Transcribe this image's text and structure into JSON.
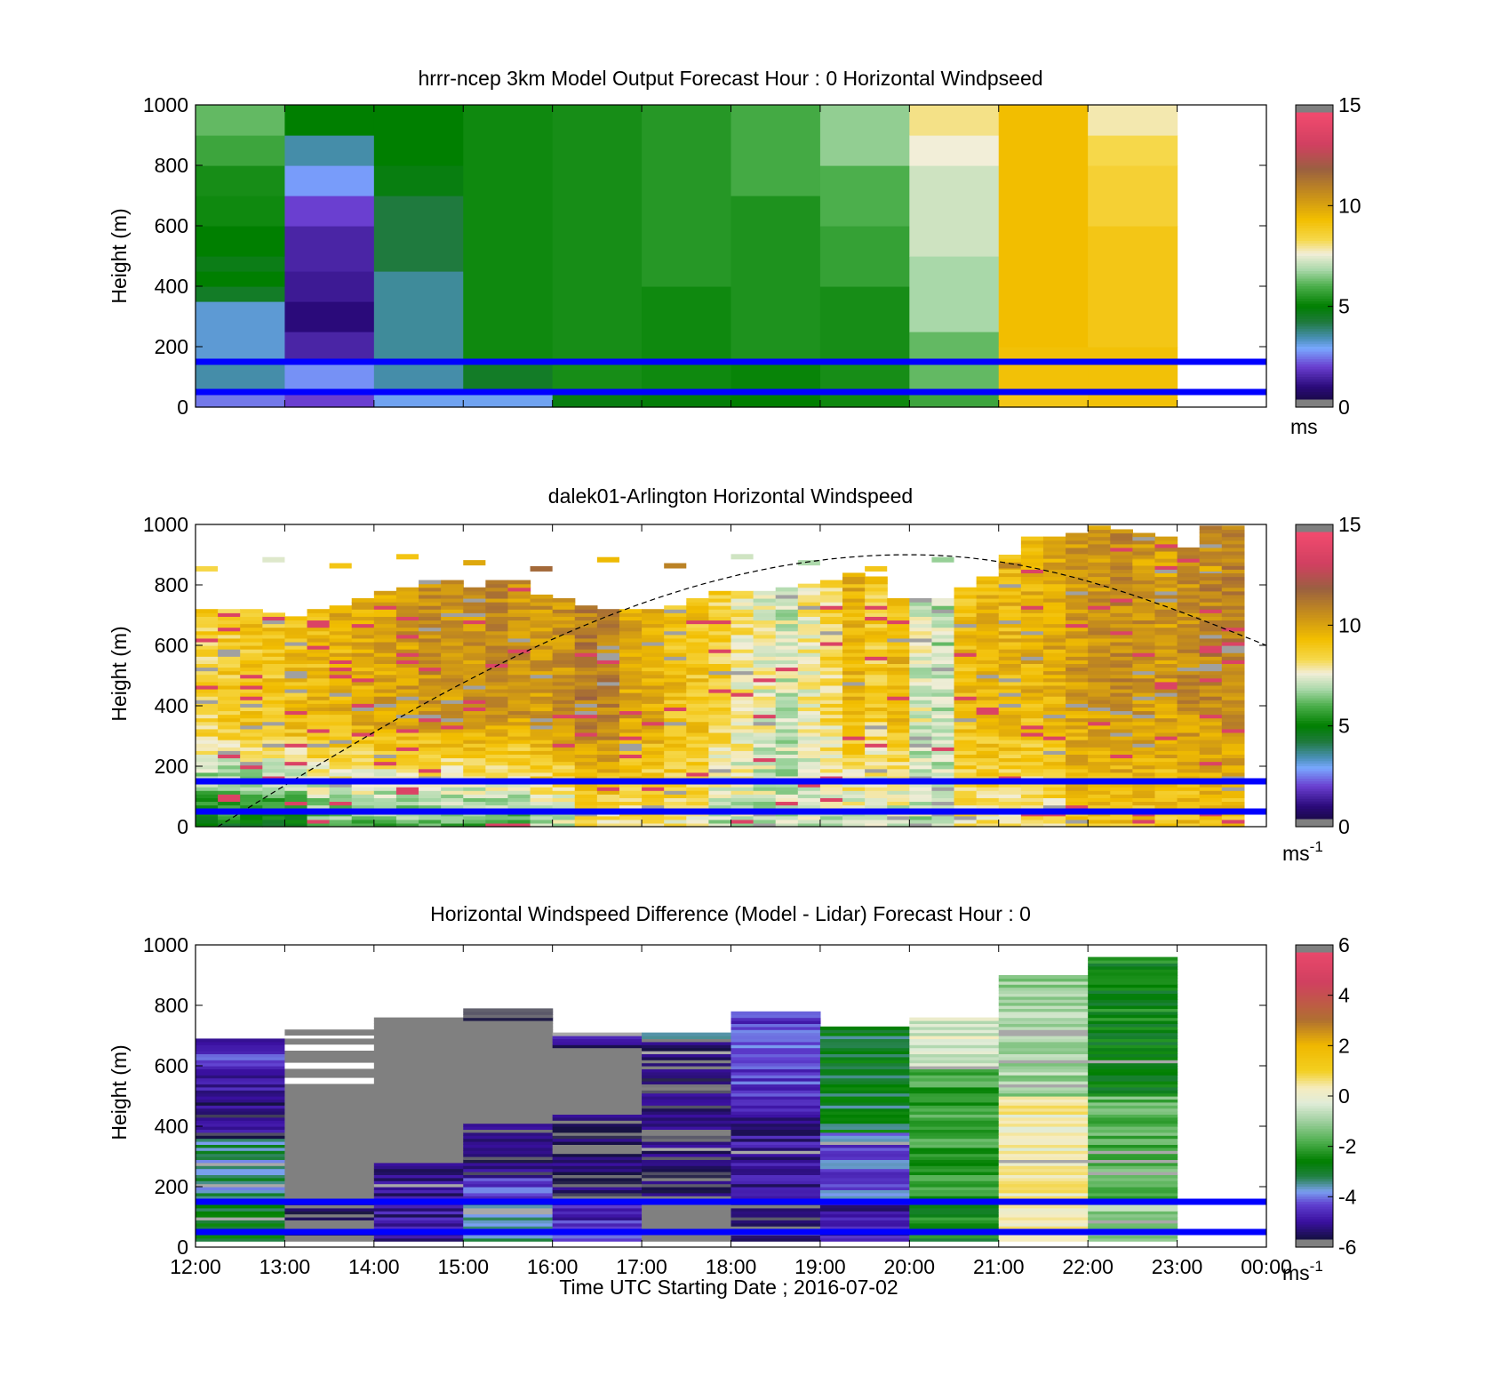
{
  "chart_data": [
    {
      "type": "heatmap",
      "title": "hrrr-ncep 3km Model Output   Forecast Hour : 0 Horizontal Windpseed",
      "ylabel": "Height (m)",
      "xlabel": "",
      "ylim": [
        0,
        1000
      ],
      "yticks": [
        "0",
        "200",
        "400",
        "600",
        "800",
        "1000"
      ],
      "x_categories": [
        "12:00",
        "13:00",
        "14:00",
        "15:00",
        "16:00",
        "17:00",
        "18:00",
        "19:00",
        "20:00",
        "21:00",
        "22:00",
        "23:00"
      ],
      "colorbar": {
        "min": 0,
        "max": 15,
        "ticks": [
          "0",
          "5",
          "10",
          "15"
        ],
        "unit": "ms"
      },
      "reference_lines_m": [
        150,
        50
      ],
      "columns": [
        {
          "time": "12:00",
          "layers": [
            [
              0,
              50,
              2.5
            ],
            [
              50,
              150,
              3.5
            ],
            [
              150,
              350,
              3.2
            ],
            [
              350,
              400,
              4.5
            ],
            [
              400,
              450,
              5.0
            ],
            [
              450,
              500,
              4.7
            ],
            [
              500,
              600,
              5.0
            ],
            [
              600,
              700,
              5.2
            ],
            [
              700,
              800,
              5.3
            ],
            [
              800,
              900,
              5.8
            ],
            [
              900,
              1000,
              6.2
            ]
          ]
        },
        {
          "time": "13:00",
          "layers": [
            [
              0,
              50,
              2.0
            ],
            [
              50,
              150,
              2.7
            ],
            [
              150,
              250,
              1.5
            ],
            [
              250,
              350,
              1.0
            ],
            [
              350,
              450,
              1.3
            ],
            [
              450,
              600,
              1.5
            ],
            [
              600,
              700,
              2.0
            ],
            [
              700,
              800,
              2.8
            ],
            [
              800,
              900,
              3.5
            ],
            [
              900,
              1000,
              5.0
            ]
          ]
        },
        {
          "time": "14:00",
          "layers": [
            [
              0,
              50,
              3.0
            ],
            [
              50,
              150,
              3.5
            ],
            [
              150,
              450,
              3.6
            ],
            [
              450,
              700,
              4.2
            ],
            [
              700,
              800,
              4.8
            ],
            [
              800,
              1000,
              5.0
            ]
          ]
        },
        {
          "time": "15:00",
          "layers": [
            [
              0,
              50,
              3.0
            ],
            [
              50,
              150,
              4.5
            ],
            [
              150,
              1000,
              5.2
            ]
          ]
        },
        {
          "time": "16:00",
          "layers": [
            [
              0,
              50,
              4.8
            ],
            [
              50,
              1000,
              5.3
            ]
          ]
        },
        {
          "time": "17:00",
          "layers": [
            [
              0,
              50,
              4.9
            ],
            [
              50,
              400,
              5.2
            ],
            [
              400,
              1000,
              5.5
            ]
          ]
        },
        {
          "time": "18:00",
          "layers": [
            [
              0,
              50,
              5.0
            ],
            [
              50,
              150,
              5.1
            ],
            [
              150,
              700,
              5.4
            ],
            [
              700,
              1000,
              5.9
            ]
          ]
        },
        {
          "time": "19:00",
          "layers": [
            [
              0,
              50,
              5.2
            ],
            [
              50,
              400,
              5.3
            ],
            [
              400,
              600,
              5.7
            ],
            [
              600,
              800,
              6.0
            ],
            [
              800,
              1000,
              6.6
            ]
          ]
        },
        {
          "time": "20:00",
          "layers": [
            [
              0,
              50,
              5.8
            ],
            [
              50,
              250,
              6.2
            ],
            [
              250,
              500,
              6.8
            ],
            [
              500,
              800,
              7.2
            ],
            [
              800,
              900,
              7.6
            ],
            [
              900,
              1000,
              8.0
            ]
          ]
        },
        {
          "time": "21:00",
          "layers": [
            [
              0,
              50,
              9.0
            ],
            [
              50,
              200,
              9.2
            ],
            [
              200,
              1000,
              9.3
            ]
          ]
        },
        {
          "time": "22:00",
          "layers": [
            [
              0,
              50,
              9.2
            ],
            [
              50,
              200,
              9.2
            ],
            [
              200,
              600,
              9.0
            ],
            [
              600,
              800,
              8.6
            ],
            [
              800,
              900,
              8.3
            ],
            [
              900,
              1000,
              7.8
            ]
          ]
        }
      ]
    },
    {
      "type": "heatmap",
      "title": "dalek01-Arlington  Horizontal Windspeed",
      "ylabel": "Height (m)",
      "xlabel": "",
      "ylim": [
        0,
        1000
      ],
      "yticks": [
        "0",
        "200",
        "400",
        "600",
        "800",
        "1000"
      ],
      "colorbar": {
        "min": 0,
        "max": 15,
        "ticks": [
          "0",
          "5",
          "10",
          "15"
        ],
        "unit": "ms",
        "unit_exp": "-1"
      },
      "reference_lines_m": [
        150,
        50
      ],
      "boundary_layer_curve": {
        "start": [
          "12:15",
          0
        ],
        "peak": [
          "20:00",
          900
        ],
        "end": [
          "00:00",
          600
        ]
      },
      "profiles": [
        {
          "time": "12:15",
          "top": 730,
          "surface": 5,
          "upper": 8.6
        },
        {
          "time": "12:30",
          "top": 730,
          "surface": 5,
          "upper": 8.8
        },
        {
          "time": "12:45",
          "top": 720,
          "surface": 5,
          "upper": 9.0
        },
        {
          "time": "13:00",
          "top": 710,
          "surface": 5,
          "upper": 9.0
        },
        {
          "time": "13:15",
          "top": 700,
          "surface": 5,
          "upper": 9.2
        },
        {
          "time": "13:30",
          "top": 720,
          "surface": 6,
          "upper": 9.4
        },
        {
          "time": "13:45",
          "top": 740,
          "surface": 6,
          "upper": 9.6
        },
        {
          "time": "14:00",
          "top": 760,
          "surface": 6,
          "upper": 9.8
        },
        {
          "time": "14:15",
          "top": 780,
          "surface": 6,
          "upper": 10.0
        },
        {
          "time": "14:30",
          "top": 800,
          "surface": 6,
          "upper": 10.2
        },
        {
          "time": "14:45",
          "top": 820,
          "surface": 6,
          "upper": 10.4
        },
        {
          "time": "15:00",
          "top": 820,
          "surface": 6,
          "upper": 10.2
        },
        {
          "time": "15:15",
          "top": 800,
          "surface": 6,
          "upper": 10.4
        },
        {
          "time": "15:30",
          "top": 820,
          "surface": 6,
          "upper": 10.6
        },
        {
          "time": "15:45",
          "top": 820,
          "surface": 6,
          "upper": 10.4
        },
        {
          "time": "16:00",
          "top": 770,
          "surface": 7,
          "upper": 10.2
        },
        {
          "time": "16:15",
          "top": 760,
          "surface": 7,
          "upper": 10.4
        },
        {
          "time": "16:30",
          "top": 740,
          "surface": 8,
          "upper": 11.0
        },
        {
          "time": "16:45",
          "top": 720,
          "surface": 8,
          "upper": 10.8
        },
        {
          "time": "17:00",
          "top": 720,
          "surface": 8,
          "upper": 10.0
        },
        {
          "time": "17:15",
          "top": 720,
          "surface": 8,
          "upper": 9.6
        },
        {
          "time": "17:30",
          "top": 740,
          "surface": 8,
          "upper": 9.2
        },
        {
          "time": "17:45",
          "top": 760,
          "surface": 8,
          "upper": 9.0
        },
        {
          "time": "18:00",
          "top": 780,
          "surface": 7,
          "upper": 8.6
        },
        {
          "time": "18:15",
          "top": 780,
          "surface": 7,
          "upper": 8.0
        },
        {
          "time": "18:30",
          "top": 790,
          "surface": 7,
          "upper": 7.6
        },
        {
          "time": "18:45",
          "top": 800,
          "surface": 7,
          "upper": 7.2
        },
        {
          "time": "19:00",
          "top": 810,
          "surface": 7,
          "upper": 7.8
        },
        {
          "time": "19:15",
          "top": 820,
          "surface": 7,
          "upper": 8.4
        },
        {
          "time": "19:30",
          "top": 840,
          "surface": 7,
          "upper": 9.6
        },
        {
          "time": "19:45",
          "top": 830,
          "surface": 7,
          "upper": 8.8
        },
        {
          "time": "20:00",
          "top": 760,
          "surface": 7,
          "upper": 9.4
        },
        {
          "time": "20:15",
          "top": 760,
          "surface": 7,
          "upper": 7.4
        },
        {
          "time": "20:30",
          "top": 760,
          "surface": 7,
          "upper": 7.0
        },
        {
          "time": "20:45",
          "top": 800,
          "surface": 8,
          "upper": 9.2
        },
        {
          "time": "21:00",
          "top": 830,
          "surface": 8,
          "upper": 9.4
        },
        {
          "time": "21:15",
          "top": 900,
          "surface": 8,
          "upper": 9.4
        },
        {
          "time": "21:30",
          "top": 960,
          "surface": 8,
          "upper": 9.6
        },
        {
          "time": "21:45",
          "top": 970,
          "surface": 8,
          "upper": 9.8
        },
        {
          "time": "22:00",
          "top": 980,
          "surface": 9,
          "upper": 10.2
        },
        {
          "time": "22:15",
          "top": 1000,
          "surface": 9,
          "upper": 10.4
        },
        {
          "time": "22:30",
          "top": 990,
          "surface": 9,
          "upper": 10.6
        },
        {
          "time": "22:45",
          "top": 980,
          "surface": 9,
          "upper": 10.4
        },
        {
          "time": "23:00",
          "top": 960,
          "surface": 9,
          "upper": 10.2
        },
        {
          "time": "23:15",
          "top": 930,
          "surface": 9,
          "upper": 10.6
        },
        {
          "time": "23:30",
          "top": 1000,
          "surface": 9,
          "upper": 10.8
        },
        {
          "time": "23:45",
          "top": 1000,
          "surface": 9,
          "upper": 10.8
        }
      ]
    },
    {
      "type": "heatmap",
      "title": "Horizontal Windspeed Difference (Model - Lidar) Forecast Hour : 0",
      "ylabel": "Height (m)",
      "xlabel": "Time UTC  Starting Date ; 2016-07-02",
      "ylim": [
        0,
        1000
      ],
      "yticks": [
        "0",
        "200",
        "400",
        "600",
        "800",
        "1000"
      ],
      "xticks": [
        "12:00",
        "13:00",
        "14:00",
        "15:00",
        "16:00",
        "17:00",
        "18:00",
        "19:00",
        "20:00",
        "21:00",
        "22:00",
        "23:00",
        "00:00"
      ],
      "colorbar": {
        "min": -6,
        "max": 6,
        "ticks": [
          "-6",
          "-4",
          "-2",
          "0",
          "2",
          "4",
          "6"
        ],
        "unit": "ms",
        "unit_exp": "-1"
      },
      "reference_lines_m": [
        150,
        50
      ],
      "columns": [
        {
          "time": "12:00",
          "layers": [
            [
              20,
              180,
              -3.0
            ],
            [
              180,
              360,
              -3.4
            ],
            [
              360,
              500,
              -5.3
            ],
            [
              500,
              600,
              -5.0
            ],
            [
              600,
              690,
              -4.6
            ]
          ]
        },
        {
          "time": "13:00",
          "layers": [
            [
              20,
              160,
              -5.8
            ],
            [
              160,
              720,
              -6.5
            ]
          ]
        },
        {
          "time": "14:00",
          "layers": [
            [
              20,
              280,
              -5.0
            ],
            [
              280,
              760,
              -6.5
            ]
          ]
        },
        {
          "time": "15:00",
          "layers": [
            [
              20,
              150,
              -3.4
            ],
            [
              150,
              230,
              -4.2
            ],
            [
              230,
              410,
              -5.4
            ],
            [
              410,
              750,
              -6.5
            ],
            [
              750,
              790,
              -5.8
            ]
          ]
        },
        {
          "time": "16:00",
          "layers": [
            [
              20,
              150,
              -4.6
            ],
            [
              150,
              440,
              -5.6
            ],
            [
              440,
              660,
              -6.5
            ],
            [
              660,
              710,
              -5.1
            ]
          ]
        },
        {
          "time": "17:00",
          "layers": [
            [
              20,
              160,
              -6.5
            ],
            [
              160,
              690,
              -5.5
            ],
            [
              690,
              710,
              -3.0
            ]
          ]
        },
        {
          "time": "18:00",
          "layers": [
            [
              20,
              150,
              -5.8
            ],
            [
              150,
              500,
              -5.0
            ],
            [
              500,
              780,
              -4.3
            ]
          ]
        },
        {
          "time": "19:00",
          "layers": [
            [
              20,
              150,
              -5.0
            ],
            [
              150,
              380,
              -4.2
            ],
            [
              380,
              730,
              -3.0
            ]
          ]
        },
        {
          "time": "20:00",
          "layers": [
            [
              20,
              150,
              -2.6
            ],
            [
              150,
              600,
              -2.0
            ],
            [
              600,
              760,
              -0.3
            ]
          ]
        },
        {
          "time": "21:00",
          "layers": [
            [
              20,
              150,
              0.4
            ],
            [
              150,
              500,
              0.2
            ],
            [
              500,
              900,
              -1.0
            ]
          ]
        },
        {
          "time": "22:00",
          "layers": [
            [
              20,
              150,
              -1.0
            ],
            [
              150,
              500,
              -1.7
            ],
            [
              500,
              960,
              -2.6
            ]
          ]
        }
      ]
    }
  ]
}
